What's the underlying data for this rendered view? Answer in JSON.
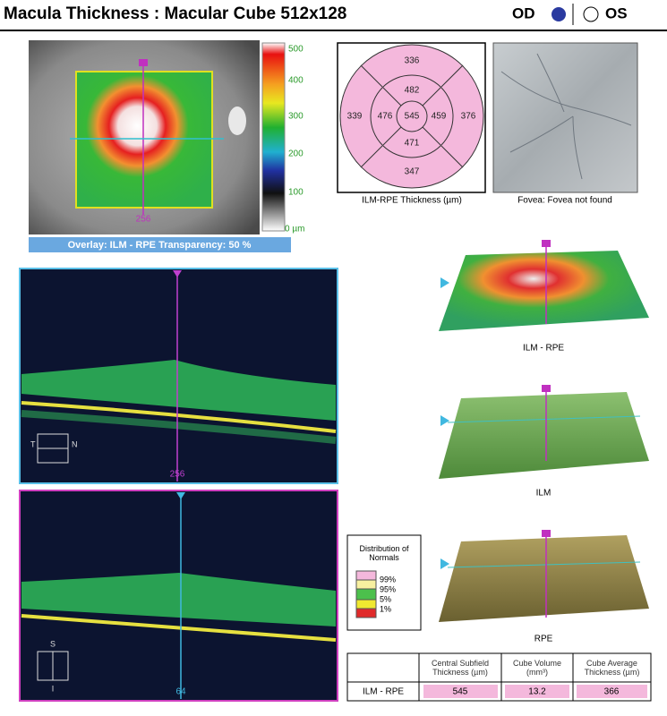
{
  "header": {
    "title": "Macula Thickness : Macular Cube 512x128",
    "od": "OD",
    "os": "OS"
  },
  "thickness_map": {
    "colorbar_labels": [
      "500",
      "400",
      "300",
      "200",
      "100",
      "0 µm"
    ],
    "position_label": "256",
    "overlay_caption": "Overlay: ILM - RPE  Transparency: 50 %"
  },
  "etdrs": {
    "top_outer": 336,
    "top_inner": 482,
    "left_outer": 339,
    "left_inner": 476,
    "center": 545,
    "right_inner": 459,
    "right_outer": 376,
    "bottom_inner": 471,
    "bottom_outer": 347,
    "caption": "ILM-RPE Thickness (µm)"
  },
  "fundus": {
    "caption": "Fovea: Fovea not found"
  },
  "bscan_horizontal": {
    "position_label": "256",
    "left": "T",
    "right": "N"
  },
  "bscan_vertical": {
    "position_label": "64",
    "top": "S",
    "bottom": "I"
  },
  "surfaces": [
    {
      "label": "ILM - RPE"
    },
    {
      "label": "ILM"
    },
    {
      "label": "RPE"
    }
  ],
  "normals_legend": {
    "title": "Distribution of Normals",
    "labels": [
      "99%",
      "95%",
      "5%",
      "1%"
    ]
  },
  "table": {
    "headers": [
      "Central Subfield Thickness (µm)",
      "Cube Volume (mm³)",
      "Cube Average Thickness (µm)"
    ],
    "rows": [
      [
        "ILM - RPE",
        545,
        13.2,
        366
      ]
    ]
  }
}
